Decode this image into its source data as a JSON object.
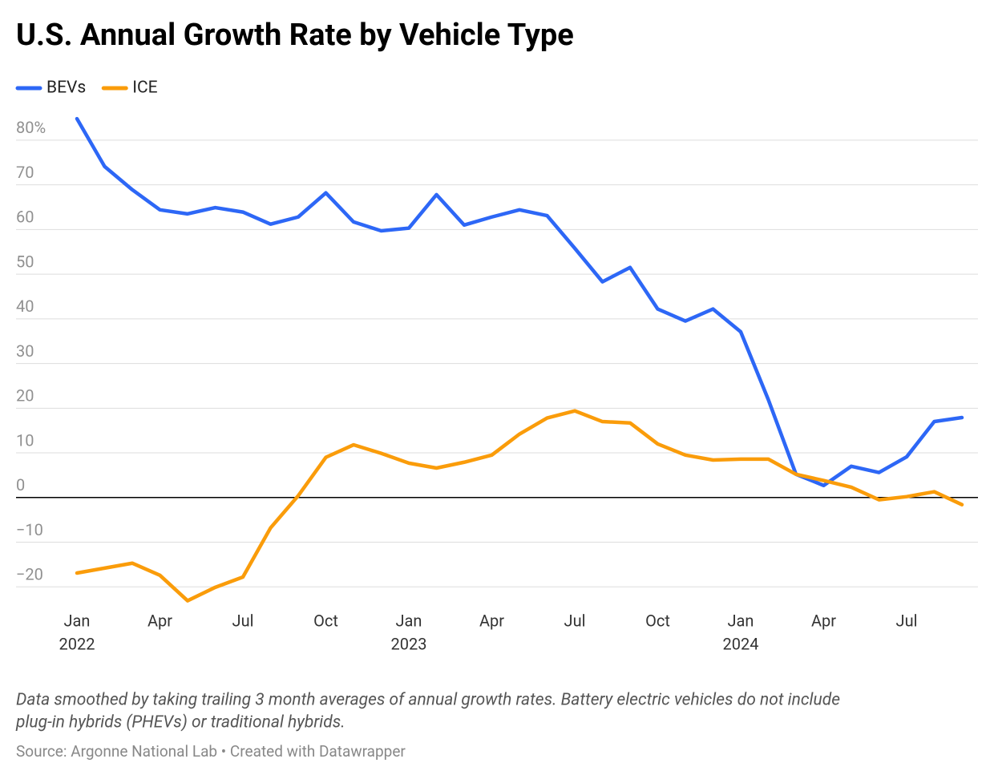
{
  "chart_data": {
    "type": "line",
    "title": "U.S. Annual Growth Rate by Vehicle Type",
    "note": "Data smoothed by taking trailing 3 month averages of annual growth rates. Battery electric vehicles do not include plug-in hybrids (PHEVs) or traditional hybrids.",
    "source": "Source: Argonne National Lab • Created with Datawrapper",
    "x": [
      "2022-01",
      "2022-02",
      "2022-03",
      "2022-04",
      "2022-05",
      "2022-06",
      "2022-07",
      "2022-08",
      "2022-09",
      "2022-10",
      "2022-11",
      "2022-12",
      "2023-01",
      "2023-02",
      "2023-03",
      "2023-04",
      "2023-05",
      "2023-06",
      "2023-07",
      "2023-08",
      "2023-09",
      "2023-10",
      "2023-11",
      "2023-12",
      "2024-01",
      "2024-02",
      "2024-03",
      "2024-04",
      "2024-05",
      "2024-06",
      "2024-07",
      "2024-08",
      "2024-09"
    ],
    "series": [
      {
        "name": "BEVs",
        "color": "#2d67f6",
        "values": [
          84.8,
          74.1,
          68.9,
          64.4,
          63.5,
          64.9,
          63.9,
          61.2,
          62.8,
          68.2,
          61.7,
          59.7,
          60.3,
          67.8,
          61.0,
          62.8,
          64.4,
          63.1,
          55.8,
          48.3,
          51.5,
          42.2,
          39.5,
          42.2,
          37.1,
          21.9,
          5.2,
          2.7,
          7.0,
          5.6,
          9.1,
          17.0,
          17.9
        ]
      },
      {
        "name": "ICE",
        "color": "#fa9c0a",
        "values": [
          -16.9,
          -15.8,
          -14.7,
          -17.4,
          -23.1,
          -20.1,
          -17.8,
          -6.8,
          0.4,
          9.0,
          11.8,
          9.9,
          7.7,
          6.6,
          7.9,
          9.5,
          14.2,
          17.8,
          19.4,
          17.0,
          16.7,
          12.0,
          9.5,
          8.4,
          8.6,
          8.6,
          5.2,
          3.8,
          2.3,
          -0.5,
          0.2,
          1.3,
          -1.6
        ]
      }
    ],
    "ylim": [
      -23,
      85
    ],
    "yticks": [
      {
        "value": -20,
        "label": "−20"
      },
      {
        "value": -10,
        "label": "−10"
      },
      0,
      10,
      20,
      30,
      40,
      50,
      60,
      70,
      {
        "value": 80,
        "label": "80%"
      }
    ],
    "xticks": [
      {
        "value": "2022-01",
        "label": "Jan",
        "year": "2022"
      },
      {
        "value": "2022-04",
        "label": "Apr"
      },
      {
        "value": "2022-07",
        "label": "Jul"
      },
      {
        "value": "2022-10",
        "label": "Oct"
      },
      {
        "value": "2023-01",
        "label": "Jan",
        "year": "2023"
      },
      {
        "value": "2023-04",
        "label": "Apr"
      },
      {
        "value": "2023-07",
        "label": "Jul"
      },
      {
        "value": "2023-10",
        "label": "Oct"
      },
      {
        "value": "2024-01",
        "label": "Jan",
        "year": "2024"
      },
      {
        "value": "2024-04",
        "label": "Apr"
      },
      {
        "value": "2024-07",
        "label": "Jul"
      }
    ],
    "grid": true,
    "legend": "top-left"
  }
}
